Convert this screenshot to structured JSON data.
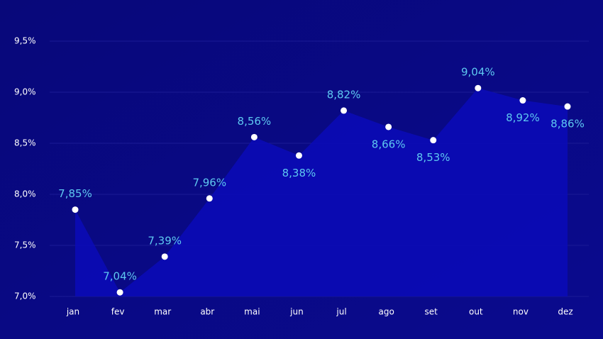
{
  "chart_data": {
    "type": "area",
    "categories": [
      "jan",
      "fev",
      "mar",
      "abr",
      "mai",
      "jun",
      "jul",
      "ago",
      "set",
      "out",
      "nov",
      "dez"
    ],
    "values": [
      7.85,
      7.04,
      7.39,
      7.96,
      8.56,
      8.38,
      8.82,
      8.66,
      8.53,
      9.04,
      8.92,
      8.86
    ],
    "value_labels": [
      "7,85%",
      "7,04%",
      "7,39%",
      "7,96%",
      "8,56%",
      "8,38%",
      "8,82%",
      "8,66%",
      "8,53%",
      "9,04%",
      "8,92%",
      "8,86%"
    ],
    "color": "#0a0ab8",
    "ylim": [
      7.0,
      9.5
    ],
    "yticks": [
      {
        "value": 7.0,
        "label": "7,0%"
      },
      {
        "value": 7.5,
        "label": "7,5%"
      },
      {
        "value": 8.0,
        "label": "8,0%"
      },
      {
        "value": 8.5,
        "label": "8,5%"
      },
      {
        "value": 9.0,
        "label": "9,0%"
      },
      {
        "value": 9.5,
        "label": "9,5%"
      }
    ],
    "grid": true
  }
}
